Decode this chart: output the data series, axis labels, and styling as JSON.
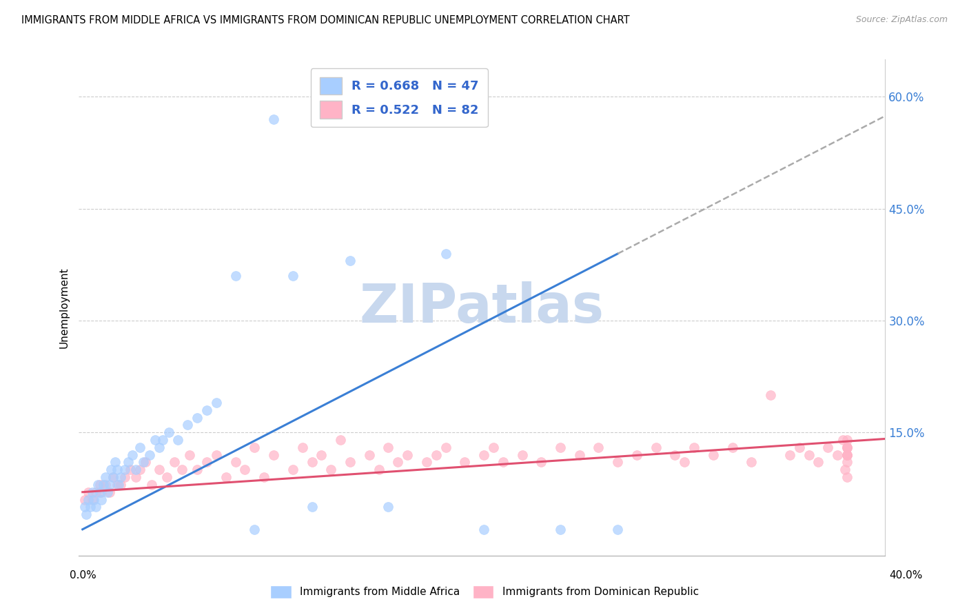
{
  "title": "IMMIGRANTS FROM MIDDLE AFRICA VS IMMIGRANTS FROM DOMINICAN REPUBLIC UNEMPLOYMENT CORRELATION CHART",
  "source": "Source: ZipAtlas.com",
  "ylabel": "Unemployment",
  "yticks": [
    "15.0%",
    "30.0%",
    "45.0%",
    "60.0%"
  ],
  "ytick_vals": [
    0.15,
    0.3,
    0.45,
    0.6
  ],
  "xlim": [
    -0.002,
    0.42
  ],
  "ylim": [
    -0.015,
    0.65
  ],
  "blue_R": "0.668",
  "blue_N": "47",
  "pink_R": "0.522",
  "pink_N": "82",
  "blue_color": "#A8CEFF",
  "pink_color": "#FFB3C6",
  "blue_line_color": "#3A7FD5",
  "pink_line_color": "#E05070",
  "dashed_line_color": "#AAAAAA",
  "watermark": "ZIPatlas",
  "watermark_color": "#C8D8EE",
  "legend_text_color": "#3366CC",
  "blue_scatter_x": [
    0.001,
    0.002,
    0.003,
    0.004,
    0.005,
    0.006,
    0.007,
    0.008,
    0.009,
    0.01,
    0.011,
    0.012,
    0.013,
    0.014,
    0.015,
    0.016,
    0.017,
    0.018,
    0.019,
    0.02,
    0.022,
    0.024,
    0.026,
    0.028,
    0.03,
    0.032,
    0.035,
    0.038,
    0.04,
    0.042,
    0.045,
    0.05,
    0.055,
    0.06,
    0.065,
    0.07,
    0.08,
    0.09,
    0.1,
    0.11,
    0.12,
    0.14,
    0.16,
    0.19,
    0.21,
    0.25,
    0.28
  ],
  "blue_scatter_y": [
    0.05,
    0.04,
    0.06,
    0.05,
    0.07,
    0.06,
    0.05,
    0.08,
    0.07,
    0.06,
    0.08,
    0.09,
    0.07,
    0.08,
    0.1,
    0.09,
    0.11,
    0.1,
    0.08,
    0.09,
    0.1,
    0.11,
    0.12,
    0.1,
    0.13,
    0.11,
    0.12,
    0.14,
    0.13,
    0.14,
    0.15,
    0.14,
    0.16,
    0.17,
    0.18,
    0.19,
    0.36,
    0.02,
    0.57,
    0.36,
    0.05,
    0.38,
    0.05,
    0.39,
    0.02,
    0.02,
    0.02
  ],
  "pink_scatter_x": [
    0.001,
    0.003,
    0.005,
    0.007,
    0.009,
    0.01,
    0.012,
    0.014,
    0.016,
    0.018,
    0.02,
    0.022,
    0.025,
    0.028,
    0.03,
    0.033,
    0.036,
    0.04,
    0.044,
    0.048,
    0.052,
    0.056,
    0.06,
    0.065,
    0.07,
    0.075,
    0.08,
    0.085,
    0.09,
    0.095,
    0.1,
    0.11,
    0.115,
    0.12,
    0.125,
    0.13,
    0.135,
    0.14,
    0.15,
    0.155,
    0.16,
    0.165,
    0.17,
    0.18,
    0.185,
    0.19,
    0.2,
    0.21,
    0.215,
    0.22,
    0.23,
    0.24,
    0.25,
    0.26,
    0.27,
    0.28,
    0.29,
    0.3,
    0.31,
    0.315,
    0.32,
    0.33,
    0.34,
    0.35,
    0.36,
    0.37,
    0.375,
    0.38,
    0.385,
    0.39,
    0.395,
    0.398,
    0.399,
    0.4,
    0.4,
    0.4,
    0.4,
    0.4,
    0.4,
    0.4,
    0.4,
    0.4
  ],
  "pink_scatter_y": [
    0.06,
    0.07,
    0.06,
    0.07,
    0.08,
    0.07,
    0.08,
    0.07,
    0.09,
    0.08,
    0.08,
    0.09,
    0.1,
    0.09,
    0.1,
    0.11,
    0.08,
    0.1,
    0.09,
    0.11,
    0.1,
    0.12,
    0.1,
    0.11,
    0.12,
    0.09,
    0.11,
    0.1,
    0.13,
    0.09,
    0.12,
    0.1,
    0.13,
    0.11,
    0.12,
    0.1,
    0.14,
    0.11,
    0.12,
    0.1,
    0.13,
    0.11,
    0.12,
    0.11,
    0.12,
    0.13,
    0.11,
    0.12,
    0.13,
    0.11,
    0.12,
    0.11,
    0.13,
    0.12,
    0.13,
    0.11,
    0.12,
    0.13,
    0.12,
    0.11,
    0.13,
    0.12,
    0.13,
    0.11,
    0.2,
    0.12,
    0.13,
    0.12,
    0.11,
    0.13,
    0.12,
    0.14,
    0.1,
    0.12,
    0.14,
    0.11,
    0.13,
    0.12,
    0.09,
    0.13,
    0.12,
    0.13
  ]
}
